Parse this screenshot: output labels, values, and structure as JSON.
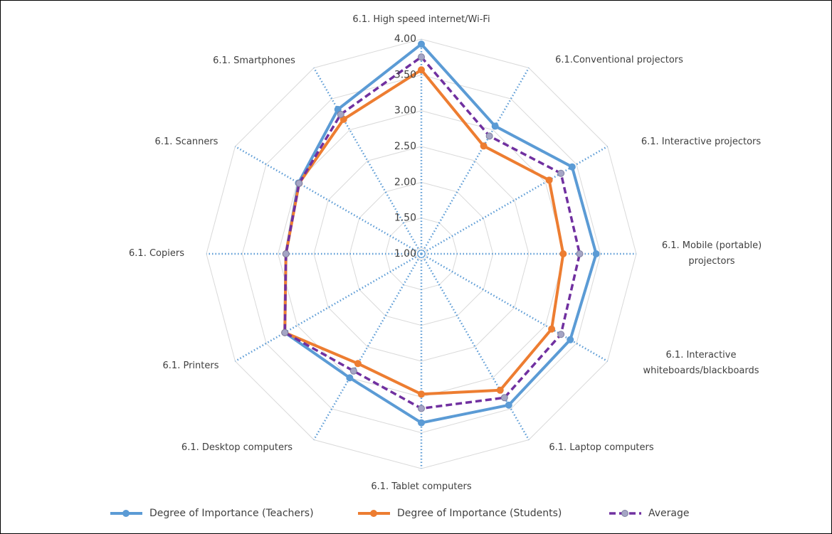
{
  "chart_data": {
    "type": "radar",
    "categories": [
      "6.1. High speed internet/Wi-Fi",
      "6.1.Conventional projectors",
      "6.1. Interactive projectors",
      "6.1.  Mobile (portable) projectors",
      "6.1. Interactive whiteboards/blackboards",
      "6.1. Laptop computers",
      "6.1.  Tablet computers",
      "6.1. Desktop computers",
      "6.1. Printers",
      "6.1. Copiers",
      "6.1. Scanners",
      "6.1.  Smartphones"
    ],
    "series": [
      {
        "name": "Degree of Importance (Teachers)",
        "color": "#5b9bd5",
        "values": [
          3.93,
          3.06,
          3.43,
          3.44,
          3.4,
          3.44,
          3.36,
          3.0,
          3.2,
          2.89,
          2.98,
          3.33
        ]
      },
      {
        "name": "Degree of Importance (Students)",
        "color": "#ed7d31",
        "values": [
          3.57,
          2.74,
          3.06,
          2.98,
          3.1,
          3.2,
          2.96,
          2.77,
          3.2,
          2.89,
          2.97,
          3.17
        ]
      },
      {
        "name": "Average",
        "color": "#7030a0",
        "dashed": true,
        "values": [
          3.75,
          2.9,
          3.25,
          3.21,
          3.25,
          3.32,
          3.16,
          2.89,
          3.2,
          2.89,
          2.97,
          3.25
        ]
      }
    ],
    "rlim": [
      1,
      4
    ],
    "rticks": [
      {
        "value": 1,
        "label": "1.00"
      },
      {
        "value": 1.5,
        "label": "1.50"
      },
      {
        "value": 2,
        "label": "2.00"
      },
      {
        "value": 2.5,
        "label": "2.50"
      },
      {
        "value": 3,
        "label": "3.00"
      },
      {
        "value": 3.5,
        "label": "3.50"
      },
      {
        "value": 4,
        "label": "4.00"
      }
    ],
    "grid": true,
    "legend": "bottom"
  }
}
